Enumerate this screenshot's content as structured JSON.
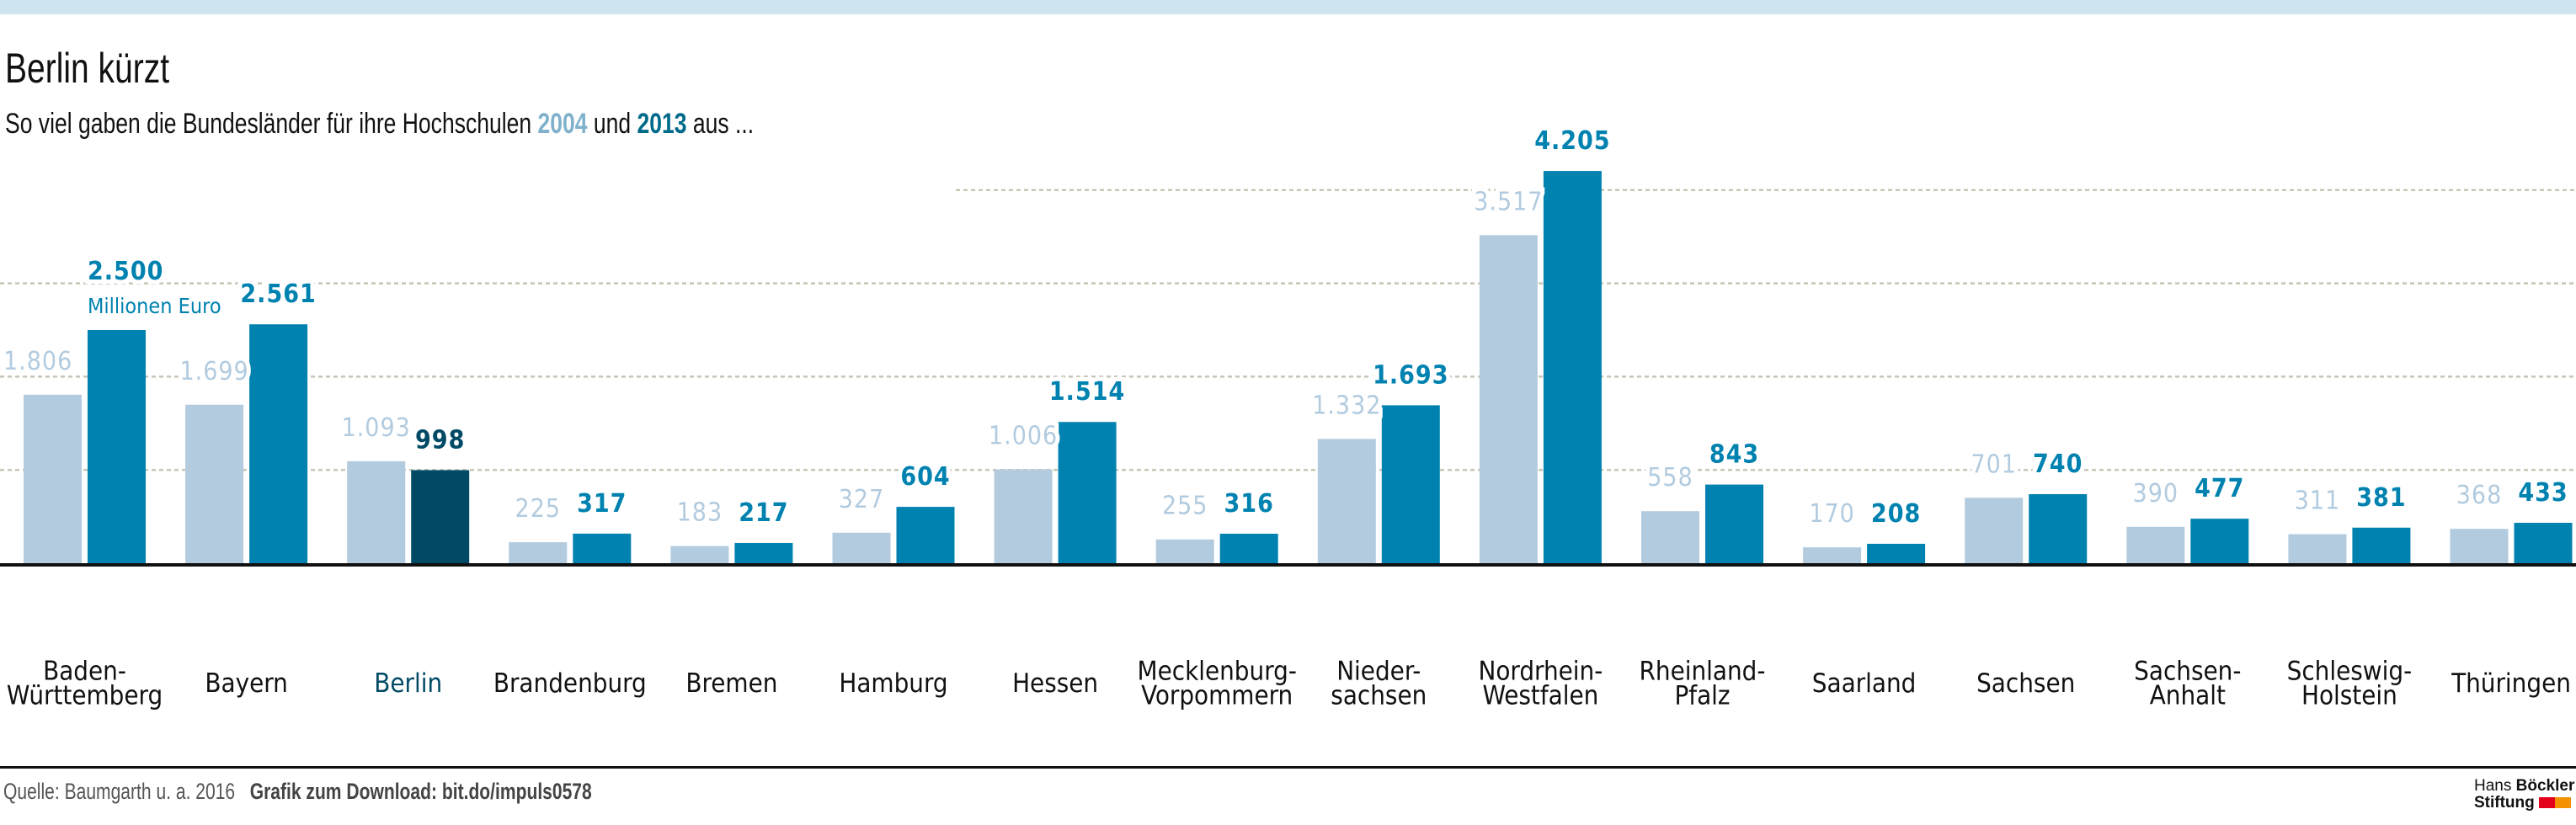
{
  "header": {
    "title": "Berlin kürzt",
    "subtitle_pre": "So viel gaben die Bundesländer für ihre Hochschulen ",
    "subtitle_year1": "2004",
    "subtitle_mid": " und ",
    "subtitle_year2": "2013",
    "subtitle_post": " aus ..."
  },
  "colors": {
    "series_2004": "#b2cbdf",
    "series_2013": "#0082b0",
    "highlight_2013": "#004a66",
    "label_2004": "#b2cbdf",
    "label_2013": "#0082b0",
    "highlight_label": "#004a66",
    "gridline": "#c7c5b6",
    "top_band": "#cde5ef"
  },
  "chart_data": {
    "type": "bar",
    "title": "Berlin kürzt",
    "subtitle": "So viel gaben die Bundesländer für ihre Hochschulen 2004 und 2013 aus ...",
    "unit_annotation": "Millionen Euro",
    "xlabel": "",
    "ylabel": "",
    "ylim": [
      0,
      4300
    ],
    "gridlines": [
      1000,
      2000,
      3000,
      4000
    ],
    "grid": true,
    "legend": "in subtitle",
    "highlight_category": "Berlin",
    "categories": [
      "Baden-Württemberg",
      "Bayern",
      "Berlin",
      "Brandenburg",
      "Bremen",
      "Hamburg",
      "Hessen",
      "Mecklenburg-Vorpommern",
      "Niedersachsen",
      "Nordrhein-Westfalen",
      "Rheinland-Pfalz",
      "Saarland",
      "Sachsen",
      "Sachsen-Anhalt",
      "Schleswig-Holstein",
      "Thüringen"
    ],
    "category_labels": [
      [
        "Baden-",
        "Württemberg"
      ],
      [
        "Bayern"
      ],
      [
        "Berlin"
      ],
      [
        "Brandenburg"
      ],
      [
        "Bremen"
      ],
      [
        "Hamburg"
      ],
      [
        "Hessen"
      ],
      [
        "Mecklenburg-",
        "Vorpommern"
      ],
      [
        "Nieder-",
        "sachsen"
      ],
      [
        "Nordrhein-",
        "Westfalen"
      ],
      [
        "Rheinland-",
        "Pfalz"
      ],
      [
        "Saarland"
      ],
      [
        "Sachsen"
      ],
      [
        "Sachsen-",
        "Anhalt"
      ],
      [
        "Schleswig-",
        "Holstein"
      ],
      [
        "Thüringen"
      ]
    ],
    "series": [
      {
        "name": "2004",
        "values": [
          1806,
          1699,
          1093,
          225,
          183,
          327,
          1006,
          255,
          1332,
          3517,
          558,
          170,
          701,
          390,
          311,
          368
        ],
        "labels": [
          "1.806",
          "1.699",
          "1.093",
          "225",
          "183",
          "327",
          "1.006",
          "255",
          "1.332",
          "3.517",
          "558",
          "170",
          "701",
          "390",
          "311",
          "368"
        ]
      },
      {
        "name": "2013",
        "values": [
          2500,
          2561,
          998,
          317,
          217,
          604,
          1514,
          316,
          1693,
          4205,
          843,
          208,
          740,
          477,
          381,
          433
        ],
        "labels": [
          "2.500",
          "2.561",
          "998",
          "317",
          "217",
          "604",
          "1.514",
          "316",
          "1.693",
          "4.205",
          "843",
          "208",
          "740",
          "477",
          "381",
          "433"
        ]
      }
    ]
  },
  "footer": {
    "source": "Quelle: Baumgarth u. a. 2016",
    "download": "Grafik zum Download: bit.do/impuls0578"
  },
  "logo": {
    "line1_light": "Hans ",
    "line1_bold": "Böckler",
    "line2_bold": "Stiftung",
    "square_colors": [
      "#e2001a",
      "#f39200"
    ]
  }
}
